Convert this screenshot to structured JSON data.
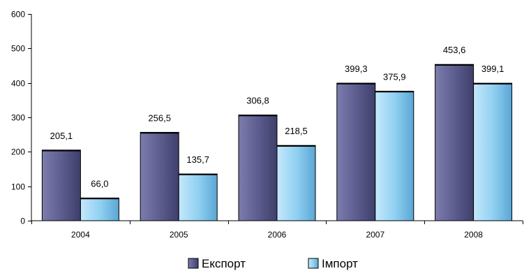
{
  "chart_data": {
    "type": "bar",
    "categories": [
      "2004",
      "2005",
      "2006",
      "2007",
      "2008"
    ],
    "series": [
      {
        "name": "Експорт",
        "values": [
          205.1,
          256.5,
          306.8,
          399.3,
          453.6
        ],
        "labels": [
          "205,1",
          "256,5",
          "306,8",
          "399,3",
          "453,6"
        ],
        "color": "#5a5a8c"
      },
      {
        "name": "Імпорт",
        "values": [
          66.0,
          135.7,
          218.5,
          375.9,
          399.1
        ],
        "labels": [
          "66,0",
          "135,7",
          "218,5",
          "375,9",
          "399,1"
        ],
        "color": "#8ccdf0"
      }
    ],
    "yticks": [
      0,
      100,
      200,
      300,
      400,
      500,
      600
    ],
    "ylim": [
      0,
      600
    ],
    "grid": false,
    "legend_position": "bottom"
  }
}
